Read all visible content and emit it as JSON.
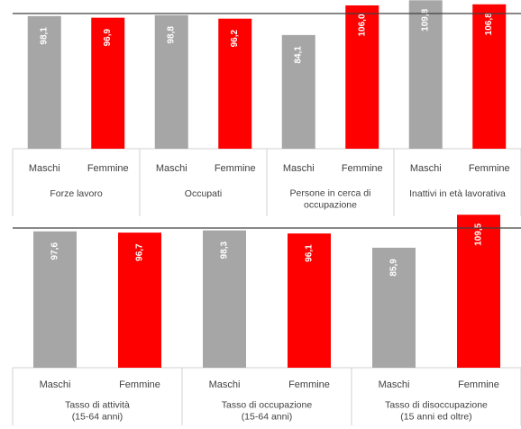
{
  "chart_data": [
    {
      "type": "bar",
      "title": "",
      "xlabel": "",
      "ylabel": "",
      "groups": [
        {
          "label_lines": [
            "Forze lavoro"
          ],
          "bars": [
            {
              "category": "Maschi",
              "value": 98.1,
              "label": "98,1"
            },
            {
              "category": "Femmine",
              "value": 96.9,
              "label": "96,9"
            }
          ]
        },
        {
          "label_lines": [
            "Occupati"
          ],
          "bars": [
            {
              "category": "Maschi",
              "value": 98.8,
              "label": "98,8"
            },
            {
              "category": "Femmine",
              "value": 96.2,
              "label": "96,2"
            }
          ]
        },
        {
          "label_lines": [
            "Persone in cerca di",
            "occupazione"
          ],
          "bars": [
            {
              "category": "Maschi",
              "value": 84.1,
              "label": "84,1"
            },
            {
              "category": "Femmine",
              "value": 106.0,
              "label": "106,0"
            }
          ]
        },
        {
          "label_lines": [
            "Inattivi in età lavorativa"
          ],
          "bars": [
            {
              "category": "Maschi",
              "value": 109.8,
              "label": "109,8"
            },
            {
              "category": "Femmine",
              "value": 106.8,
              "label": "106,8"
            }
          ]
        }
      ]
    },
    {
      "type": "bar",
      "title": "",
      "xlabel": "",
      "ylabel": "",
      "groups": [
        {
          "label_lines": [
            "Tasso di attività",
            "(15-64 anni)"
          ],
          "bars": [
            {
              "category": "Maschi",
              "value": 97.6,
              "label": "97,6"
            },
            {
              "category": "Femmine",
              "value": 96.7,
              "label": "96,7"
            }
          ]
        },
        {
          "label_lines": [
            "Tasso di occupazione",
            "(15-64 anni)"
          ],
          "bars": [
            {
              "category": "Maschi",
              "value": 98.3,
              "label": "98,3"
            },
            {
              "category": "Femmine",
              "value": 96.1,
              "label": "96,1"
            }
          ]
        },
        {
          "label_lines": [
            "Tasso di disoccupazione",
            "(15 anni ed oltre)"
          ],
          "bars": [
            {
              "category": "Maschi",
              "value": 85.9,
              "label": "85,9"
            },
            {
              "category": "Femmine",
              "value": 109.5,
              "label": "109,5"
            }
          ]
        }
      ]
    }
  ],
  "colors": {
    "Maschi": "#a6a6a6",
    "Femmine": "#ff0000"
  }
}
